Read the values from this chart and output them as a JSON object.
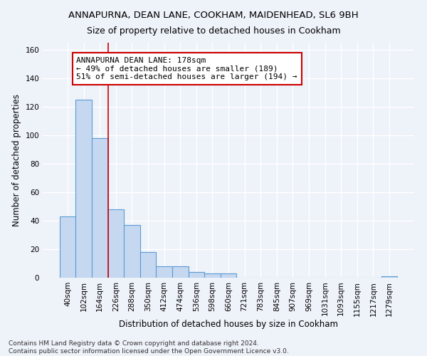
{
  "title": "ANNAPURNA, DEAN LANE, COOKHAM, MAIDENHEAD, SL6 9BH",
  "subtitle": "Size of property relative to detached houses in Cookham",
  "xlabel": "Distribution of detached houses by size in Cookham",
  "ylabel": "Number of detached properties",
  "footnote1": "Contains HM Land Registry data © Crown copyright and database right 2024.",
  "footnote2": "Contains public sector information licensed under the Open Government Licence v3.0.",
  "categories": [
    "40sqm",
    "102sqm",
    "164sqm",
    "226sqm",
    "288sqm",
    "350sqm",
    "412sqm",
    "474sqm",
    "536sqm",
    "598sqm",
    "660sqm",
    "721sqm",
    "783sqm",
    "845sqm",
    "907sqm",
    "969sqm",
    "1031sqm",
    "1093sqm",
    "1155sqm",
    "1217sqm",
    "1279sqm"
  ],
  "values": [
    43,
    125,
    98,
    48,
    37,
    18,
    8,
    8,
    4,
    3,
    3,
    0,
    0,
    0,
    0,
    0,
    0,
    0,
    0,
    0,
    1
  ],
  "bar_color": "#c5d8f0",
  "bar_edge_color": "#5b9bd5",
  "vline_x": 2.0,
  "annotation_line1": "ANNAPURNA DEAN LANE: 178sqm",
  "annotation_line2": "← 49% of detached houses are smaller (189)",
  "annotation_line3": "51% of semi-detached houses are larger (194) →",
  "annotation_box_color": "#ffffff",
  "annotation_box_edge_color": "#cc0000",
  "vline_color": "#cc0000",
  "ylim": [
    0,
    165
  ],
  "yticks": [
    0,
    20,
    40,
    60,
    80,
    100,
    120,
    140,
    160
  ],
  "background_color": "#eef2f9",
  "grid_color": "#ffffff",
  "title_fontsize": 9.5,
  "subtitle_fontsize": 9,
  "xlabel_fontsize": 8.5,
  "ylabel_fontsize": 8.5,
  "tick_fontsize": 7.5,
  "annotation_fontsize": 8,
  "footnote_fontsize": 6.5
}
